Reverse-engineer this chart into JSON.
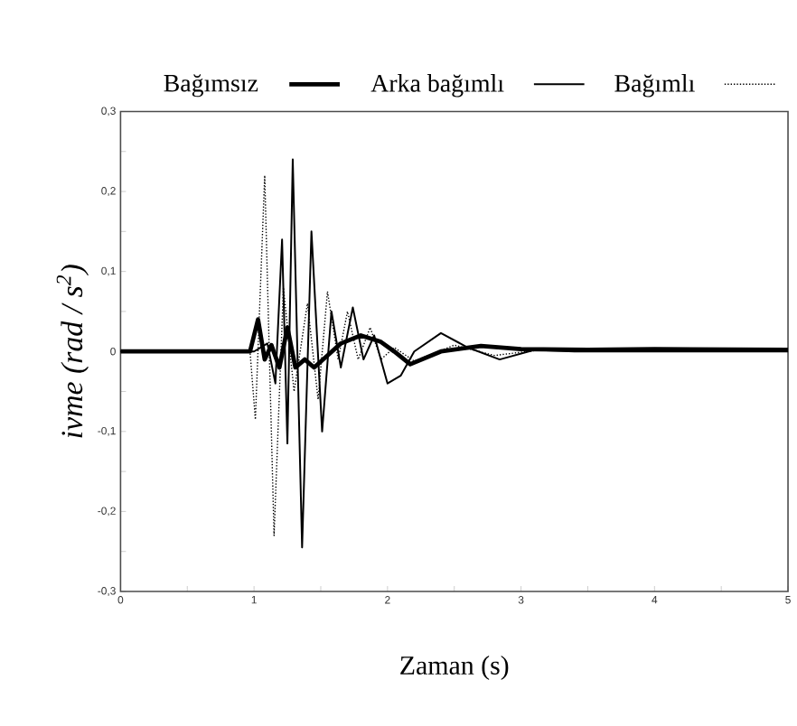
{
  "chart_data": {
    "type": "line",
    "xlabel": "Zaman (s)",
    "ylabel": "ivme (rad / s$^{2}$)",
    "legend": "top",
    "xlim": [
      0,
      5
    ],
    "ylim": [
      -0.3,
      0.3
    ],
    "xticks": [
      0,
      {
        "value": 0.5,
        "label": null
      },
      1,
      {
        "value": 1.5,
        "label": null
      },
      2,
      {
        "value": 2.5,
        "label": null
      },
      3,
      {
        "value": 3.5,
        "label": null
      },
      4,
      {
        "value": 4.5,
        "label": null
      },
      5
    ],
    "yticks": [
      {
        "value": -0.3,
        "label": "-0,3"
      },
      {
        "value": -0.25,
        "label": null
      },
      {
        "value": -0.2,
        "label": "-0,2"
      },
      {
        "value": -0.15,
        "label": null
      },
      {
        "value": -0.1,
        "label": "-0,1"
      },
      {
        "value": -0.05,
        "label": null
      },
      0,
      {
        "value": 0.05,
        "label": null
      },
      {
        "value": 0.1,
        "label": "0,1"
      },
      {
        "value": 0.15,
        "label": null
      },
      {
        "value": 0.2,
        "label": "0,2"
      },
      {
        "value": 0.25,
        "label": null
      },
      {
        "value": 0.3,
        "label": "0,3"
      }
    ],
    "series": [
      {
        "name": "Bağımsız",
        "color": "#000000",
        "line_style": "solid",
        "x": [
          0,
          0.97,
          1.03,
          1.08,
          1.13,
          1.19,
          1.25,
          1.31,
          1.38,
          1.45,
          1.55,
          1.65,
          1.8,
          1.95,
          2.05,
          2.17,
          2.4,
          2.7,
          3.0,
          3.5,
          4.0,
          5.0
        ],
        "values": [
          0,
          0,
          0.04,
          -0.01,
          0.008,
          -0.02,
          0.03,
          -0.02,
          -0.01,
          -0.02,
          -0.005,
          0.01,
          0.02,
          0.012,
          0,
          -0.016,
          0,
          0.007,
          0.003,
          0.002,
          0.003,
          0.002
        ]
      },
      {
        "name": "Arka bağımlı",
        "color": "#000000",
        "line_style": "solid",
        "x": [
          0,
          1.0,
          1.1,
          1.16,
          1.21,
          1.25,
          1.29,
          1.36,
          1.43,
          1.51,
          1.58,
          1.65,
          1.74,
          1.82,
          1.9,
          2.0,
          2.1,
          2.2,
          2.4,
          2.6,
          2.84,
          3.1,
          3.4,
          5.0
        ],
        "values": [
          0,
          0,
          0.01,
          -0.04,
          0.14,
          -0.115,
          0.24,
          -0.245,
          0.15,
          -0.1,
          0.05,
          -0.02,
          0.055,
          -0.01,
          0.02,
          -0.04,
          -0.03,
          0,
          0.023,
          0.005,
          -0.01,
          0.002,
          0,
          0
        ]
      },
      {
        "name": "Bağımlı",
        "color": "#000000",
        "line_style": "dotted",
        "x": [
          0,
          0.97,
          1.01,
          1.08,
          1.15,
          1.22,
          1.3,
          1.4,
          1.48,
          1.55,
          1.63,
          1.7,
          1.78,
          1.87,
          1.95,
          2.05,
          2.2,
          2.5,
          2.8,
          3.2,
          5.0
        ],
        "values": [
          0,
          0,
          -0.085,
          0.22,
          -0.23,
          0.08,
          -0.05,
          0.06,
          -0.06,
          0.075,
          -0.01,
          0.05,
          -0.01,
          0.03,
          -0.01,
          0.005,
          -0.012,
          0.008,
          -0.005,
          0.003,
          0
        ]
      }
    ]
  }
}
